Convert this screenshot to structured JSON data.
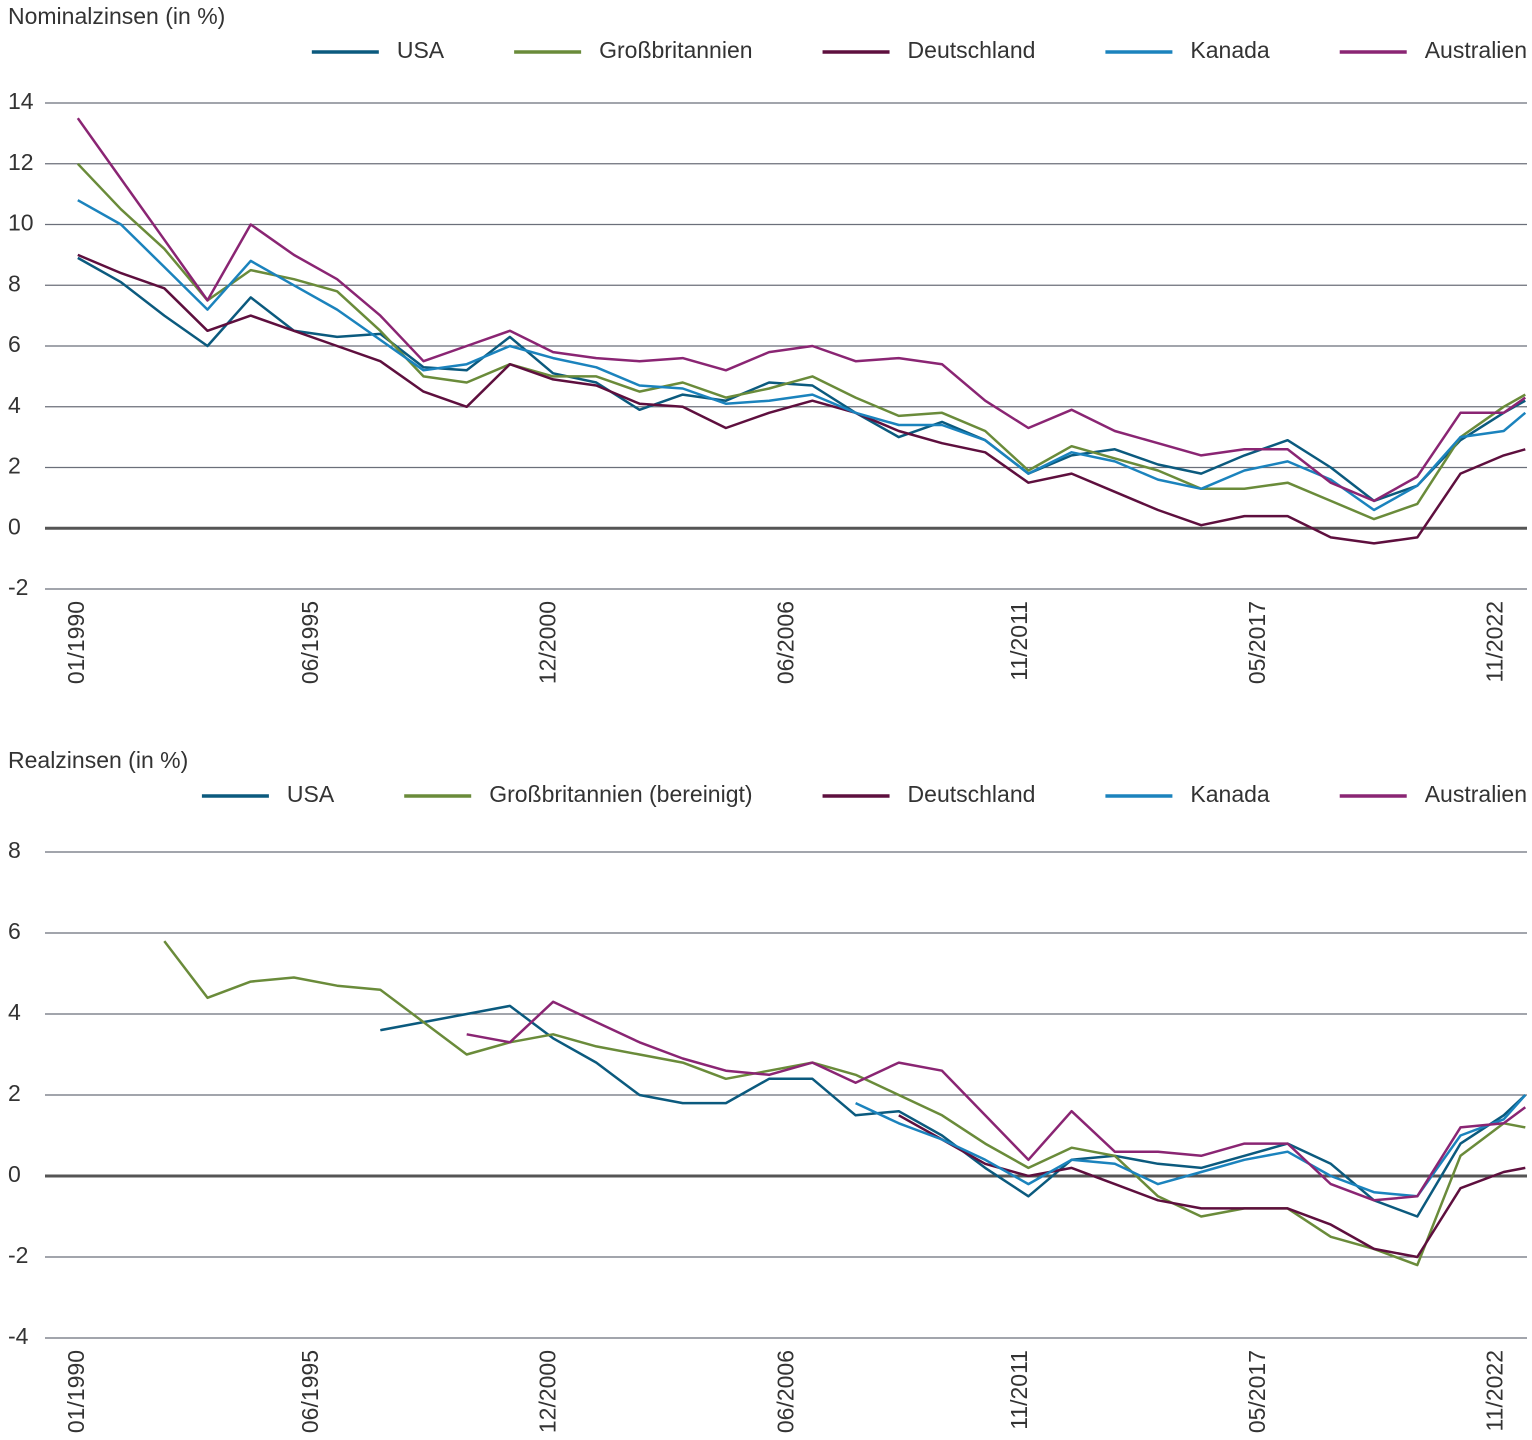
{
  "chart_data": [
    {
      "type": "line",
      "title": "Nominalzinsen (in %)",
      "x": [
        1990,
        1991,
        1992,
        1993,
        1994,
        1995,
        1996,
        1997,
        1998,
        1999,
        2000,
        2001,
        2002,
        2003,
        2004,
        2005,
        2006,
        2007,
        2008,
        2009,
        2010,
        2011,
        2012,
        2013,
        2014,
        2015,
        2016,
        2017,
        2018,
        2019,
        2020,
        2021,
        2022,
        2023,
        2023.5
      ],
      "xlim": [
        1989.24,
        2023.54
      ],
      "xticks": [
        {
          "value": 1990.0,
          "label": "01/1990"
        },
        {
          "value": 1995.42,
          "label": "06/1995"
        },
        {
          "value": 2000.92,
          "label": "12/2000"
        },
        {
          "value": 2006.42,
          "label": "06/2006"
        },
        {
          "value": 2011.83,
          "label": "11/2011"
        },
        {
          "value": 2017.33,
          "label": "05/2017"
        },
        {
          "value": 2022.83,
          "label": "11/2022"
        }
      ],
      "ylim": [
        -2,
        14
      ],
      "yticks": [
        14,
        12,
        10,
        8,
        6,
        4,
        2,
        0,
        -2
      ],
      "grid": true,
      "zero_line": true,
      "legend": "top-right",
      "series": [
        {
          "name": "USA",
          "color": "#0b5a7e",
          "values": [
            8.9,
            8.1,
            7.0,
            6.0,
            7.6,
            6.5,
            6.3,
            6.4,
            5.3,
            5.2,
            6.3,
            5.1,
            4.8,
            3.9,
            4.4,
            4.2,
            4.8,
            4.7,
            3.8,
            3.0,
            3.5,
            2.9,
            1.8,
            2.4,
            2.6,
            2.1,
            1.8,
            2.4,
            2.9,
            2.0,
            0.9,
            1.4,
            2.9,
            3.8,
            4.2
          ]
        },
        {
          "name": "Großbritannien",
          "color": "#6a8b3a",
          "values": [
            12.0,
            10.5,
            9.2,
            7.5,
            8.5,
            8.2,
            7.8,
            6.5,
            5.0,
            4.8,
            5.4,
            5.0,
            5.0,
            4.5,
            4.8,
            4.3,
            4.6,
            5.0,
            4.3,
            3.7,
            3.8,
            3.2,
            1.9,
            2.7,
            2.3,
            1.9,
            1.3,
            1.3,
            1.5,
            0.9,
            0.3,
            0.8,
            3.0,
            4.0,
            4.4
          ]
        },
        {
          "name": "Deutschland",
          "color": "#5e0f3e",
          "values": [
            9.0,
            8.4,
            7.9,
            6.5,
            7.0,
            6.5,
            6.0,
            5.5,
            4.5,
            4.0,
            5.4,
            4.9,
            4.7,
            4.1,
            4.0,
            3.3,
            3.8,
            4.2,
            3.8,
            3.2,
            2.8,
            2.5,
            1.5,
            1.8,
            1.2,
            0.6,
            0.1,
            0.4,
            0.4,
            -0.3,
            -0.5,
            -0.3,
            1.8,
            2.4,
            2.6
          ]
        },
        {
          "name": "Kanada",
          "color": "#1b83bd",
          "values": [
            10.8,
            10.0,
            8.6,
            7.2,
            8.8,
            8.0,
            7.2,
            6.2,
            5.2,
            5.4,
            6.0,
            5.6,
            5.3,
            4.7,
            4.6,
            4.1,
            4.2,
            4.4,
            3.8,
            3.4,
            3.4,
            2.9,
            1.8,
            2.5,
            2.2,
            1.6,
            1.3,
            1.9,
            2.2,
            1.6,
            0.6,
            1.4,
            3.0,
            3.2,
            3.8
          ]
        },
        {
          "name": "Australien",
          "color": "#8a2573",
          "values": [
            13.5,
            11.5,
            9.5,
            7.5,
            10.0,
            9.0,
            8.2,
            7.0,
            5.5,
            6.0,
            6.5,
            5.8,
            5.6,
            5.5,
            5.6,
            5.2,
            5.8,
            6.0,
            5.5,
            5.6,
            5.4,
            4.2,
            3.3,
            3.9,
            3.2,
            2.8,
            2.4,
            2.6,
            2.6,
            1.5,
            0.9,
            1.7,
            3.8,
            3.8,
            4.3
          ]
        }
      ]
    },
    {
      "type": "line",
      "title": "Realzinsen (in %)",
      "x": [
        1990,
        1991,
        1992,
        1993,
        1994,
        1995,
        1996,
        1997,
        1998,
        1999,
        2000,
        2001,
        2002,
        2003,
        2004,
        2005,
        2006,
        2007,
        2008,
        2009,
        2010,
        2011,
        2012,
        2013,
        2014,
        2015,
        2016,
        2017,
        2018,
        2019,
        2020,
        2021,
        2022,
        2023,
        2023.5
      ],
      "xlim": [
        1989.24,
        2023.54
      ],
      "xticks": [
        {
          "value": 1990.0,
          "label": "01/1990"
        },
        {
          "value": 1995.42,
          "label": "06/1995"
        },
        {
          "value": 2000.92,
          "label": "12/2000"
        },
        {
          "value": 2006.42,
          "label": "06/2006"
        },
        {
          "value": 2011.83,
          "label": "11/2011"
        },
        {
          "value": 2017.33,
          "label": "05/2017"
        },
        {
          "value": 2022.83,
          "label": "11/2022"
        }
      ],
      "ylim": [
        -4,
        8
      ],
      "yticks": [
        8,
        6,
        4,
        2,
        0,
        -2,
        -4
      ],
      "grid": true,
      "zero_line": true,
      "legend": "top-right",
      "series": [
        {
          "name": "USA",
          "color": "#0b5a7e",
          "values": [
            null,
            null,
            null,
            null,
            null,
            null,
            null,
            3.6,
            3.8,
            4.0,
            4.2,
            3.4,
            2.8,
            2.0,
            1.8,
            1.8,
            2.4,
            2.4,
            1.5,
            1.6,
            1.0,
            0.2,
            -0.5,
            0.4,
            0.5,
            0.3,
            0.2,
            0.5,
            0.8,
            0.3,
            -0.6,
            -1.0,
            0.8,
            1.5,
            2.0
          ]
        },
        {
          "name": "Großbritannien (bereinigt)",
          "color": "#6a8b3a",
          "values": [
            null,
            null,
            5.8,
            4.4,
            4.8,
            4.9,
            4.7,
            4.6,
            3.8,
            3.0,
            3.3,
            3.5,
            3.2,
            3.0,
            2.8,
            2.4,
            2.6,
            2.8,
            2.5,
            2.0,
            1.5,
            0.8,
            0.2,
            0.7,
            0.5,
            -0.5,
            -1.0,
            -0.8,
            -0.8,
            -1.5,
            -1.8,
            -2.2,
            0.5,
            1.3,
            1.2
          ]
        },
        {
          "name": "Deutschland",
          "color": "#5e0f3e",
          "values": [
            null,
            null,
            null,
            null,
            null,
            null,
            null,
            null,
            null,
            null,
            null,
            null,
            null,
            null,
            null,
            null,
            null,
            null,
            null,
            1.5,
            0.9,
            0.3,
            0.0,
            0.2,
            -0.2,
            -0.6,
            -0.8,
            -0.8,
            -0.8,
            -1.2,
            -1.8,
            -2.0,
            -0.3,
            0.1,
            0.2
          ]
        },
        {
          "name": "Kanada",
          "color": "#1b83bd",
          "values": [
            null,
            null,
            null,
            null,
            null,
            null,
            null,
            null,
            null,
            null,
            null,
            null,
            null,
            null,
            null,
            null,
            null,
            null,
            1.8,
            1.3,
            0.9,
            0.4,
            -0.2,
            0.4,
            0.3,
            -0.2,
            0.1,
            0.4,
            0.6,
            0.0,
            -0.4,
            -0.5,
            1.0,
            1.4,
            2.0
          ]
        },
        {
          "name": "Australien",
          "color": "#8a2573",
          "values": [
            null,
            null,
            null,
            null,
            null,
            null,
            null,
            null,
            null,
            3.5,
            3.3,
            4.3,
            3.8,
            3.3,
            2.9,
            2.6,
            2.5,
            2.8,
            2.3,
            2.8,
            2.6,
            1.5,
            0.4,
            1.6,
            0.6,
            0.6,
            0.5,
            0.8,
            0.8,
            -0.2,
            -0.6,
            -0.5,
            1.2,
            1.3,
            1.7
          ]
        }
      ]
    }
  ]
}
